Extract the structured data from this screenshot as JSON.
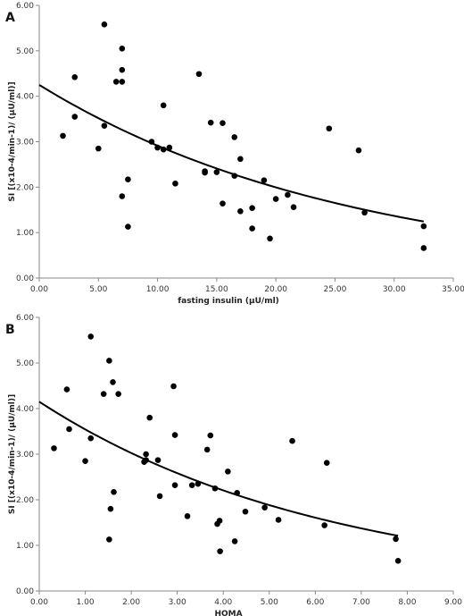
{
  "chart_data": [
    {
      "type": "scatter",
      "panel_label": "A",
      "xlabel": "fasting insulin (µU/ml)",
      "ylabel": "SI [(x10-4/min-1)/ (µU/ml)]",
      "xlim": [
        0,
        35
      ],
      "ylim": [
        0,
        6
      ],
      "x_ticks": [
        "0.00",
        "5.00",
        "10.00",
        "15.00",
        "20.00",
        "25.00",
        "30.00",
        "35.00"
      ],
      "y_ticks": [
        "0.00",
        "1.00",
        "2.00",
        "3.00",
        "4.00",
        "5.00",
        "6.00"
      ],
      "grid": false,
      "points": [
        [
          2.0,
          3.13
        ],
        [
          3.0,
          4.42
        ],
        [
          3.0,
          3.55
        ],
        [
          5.0,
          2.85
        ],
        [
          5.5,
          5.58
        ],
        [
          5.5,
          3.35
        ],
        [
          6.5,
          4.32
        ],
        [
          7.0,
          5.05
        ],
        [
          7.0,
          4.58
        ],
        [
          7.0,
          4.32
        ],
        [
          7.0,
          1.8
        ],
        [
          7.5,
          2.17
        ],
        [
          7.5,
          1.13
        ],
        [
          9.5,
          3.0
        ],
        [
          10.0,
          2.87
        ],
        [
          10.5,
          3.8
        ],
        [
          10.5,
          2.83
        ],
        [
          11.0,
          2.87
        ],
        [
          11.5,
          2.08
        ],
        [
          13.5,
          4.49
        ],
        [
          14.0,
          2.35
        ],
        [
          14.0,
          2.32
        ],
        [
          14.5,
          3.42
        ],
        [
          15.0,
          2.33
        ],
        [
          15.5,
          3.41
        ],
        [
          15.5,
          1.64
        ],
        [
          16.5,
          3.1
        ],
        [
          16.5,
          2.25
        ],
        [
          17.0,
          2.62
        ],
        [
          17.0,
          1.47
        ],
        [
          18.0,
          1.54
        ],
        [
          18.0,
          1.09
        ],
        [
          19.0,
          2.15
        ],
        [
          19.5,
          0.87
        ],
        [
          20.0,
          1.74
        ],
        [
          21.0,
          1.83
        ],
        [
          21.5,
          1.56
        ],
        [
          24.5,
          3.29
        ],
        [
          27.0,
          2.81
        ],
        [
          27.5,
          1.44
        ],
        [
          32.5,
          1.14
        ],
        [
          32.5,
          0.66
        ]
      ],
      "trend": {
        "type": "exponential",
        "a": 4.25,
        "b": -0.0378
      }
    },
    {
      "type": "scatter",
      "panel_label": "B",
      "xlabel": "HOMA",
      "ylabel": "SI [(x10-4/min-1)/ (µU/ml)]",
      "xlim": [
        0,
        9
      ],
      "ylim": [
        0,
        6
      ],
      "x_ticks": [
        "0.00",
        "1.00",
        "2.00",
        "3.00",
        "4.00",
        "5.00",
        "6.00",
        "7.00",
        "8.00",
        "9.00"
      ],
      "y_ticks": [
        "0.00",
        "1.00",
        "2.00",
        "3.00",
        "4.00",
        "5.00",
        "6.00"
      ],
      "grid": false,
      "points": [
        [
          0.32,
          3.13
        ],
        [
          0.6,
          4.42
        ],
        [
          0.65,
          3.55
        ],
        [
          1.0,
          2.85
        ],
        [
          1.12,
          5.58
        ],
        [
          1.12,
          3.35
        ],
        [
          1.4,
          4.32
        ],
        [
          1.52,
          5.05
        ],
        [
          1.6,
          4.58
        ],
        [
          1.72,
          4.32
        ],
        [
          1.55,
          1.8
        ],
        [
          1.62,
          2.17
        ],
        [
          1.52,
          1.13
        ],
        [
          2.28,
          2.83
        ],
        [
          2.32,
          3.0
        ],
        [
          2.32,
          2.87
        ],
        [
          2.4,
          3.8
        ],
        [
          2.58,
          2.87
        ],
        [
          2.62,
          2.08
        ],
        [
          2.92,
          4.49
        ],
        [
          2.95,
          3.42
        ],
        [
          2.95,
          2.32
        ],
        [
          3.22,
          1.64
        ],
        [
          3.32,
          2.32
        ],
        [
          3.45,
          2.35
        ],
        [
          3.65,
          3.1
        ],
        [
          3.72,
          3.41
        ],
        [
          3.82,
          2.25
        ],
        [
          3.87,
          1.47
        ],
        [
          3.92,
          1.54
        ],
        [
          3.93,
          0.87
        ],
        [
          4.1,
          2.62
        ],
        [
          4.25,
          1.09
        ],
        [
          4.3,
          2.15
        ],
        [
          4.48,
          1.74
        ],
        [
          4.9,
          1.83
        ],
        [
          5.2,
          1.56
        ],
        [
          5.5,
          3.29
        ],
        [
          6.2,
          1.44
        ],
        [
          6.25,
          2.81
        ],
        [
          7.75,
          1.14
        ],
        [
          7.8,
          0.66
        ]
      ],
      "trend": {
        "type": "exponential",
        "a": 4.15,
        "b": -0.158
      }
    }
  ]
}
